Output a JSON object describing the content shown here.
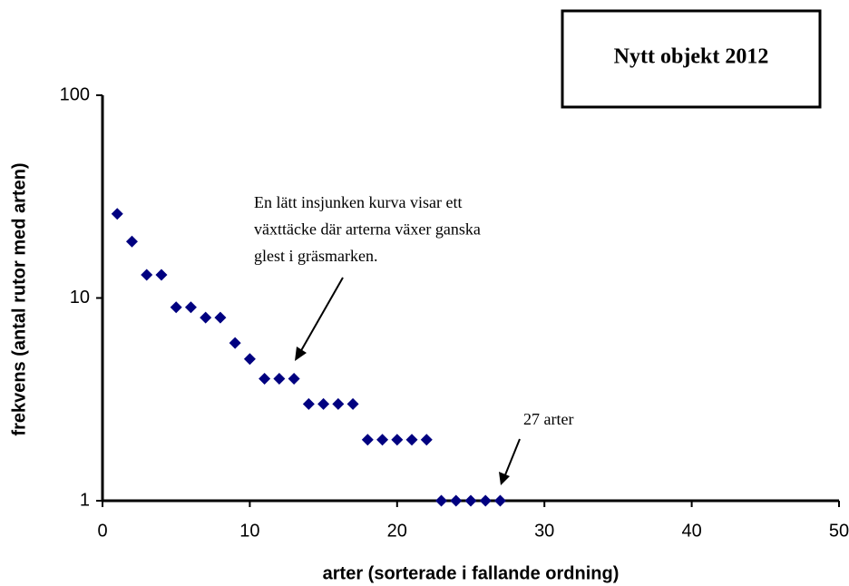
{
  "chart_data": {
    "type": "scatter",
    "title": "Nytt objekt 2012",
    "x_label": "arter (sorterade i fallande ordning)",
    "y_label": "frekvens (antal rutor med arten)",
    "x": [
      1,
      2,
      3,
      4,
      5,
      6,
      7,
      8,
      9,
      10,
      11,
      12,
      13,
      14,
      15,
      16,
      17,
      18,
      19,
      20,
      21,
      22,
      23,
      24,
      25,
      26,
      27
    ],
    "values": [
      26,
      19,
      13,
      13,
      9,
      9,
      8,
      8,
      6,
      5,
      4,
      4,
      4,
      3,
      3,
      3,
      3,
      2,
      2,
      2,
      2,
      2,
      1,
      1,
      1,
      1,
      1
    ],
    "color": "#000080",
    "xlim": [
      0,
      50
    ],
    "xticks": [
      0,
      10,
      20,
      30,
      40,
      50
    ],
    "ylim": [
      1,
      100
    ],
    "yticks": [
      1,
      10,
      100
    ],
    "y_scale": "log",
    "grid": false,
    "annotations": [
      {
        "lines": [
          "En lätt insjunken kurva visar ett",
          "växttäcke där arterna växer ganska",
          "glest i gräsmarken."
        ]
      },
      {
        "lines": [
          "27 arter"
        ]
      }
    ]
  }
}
